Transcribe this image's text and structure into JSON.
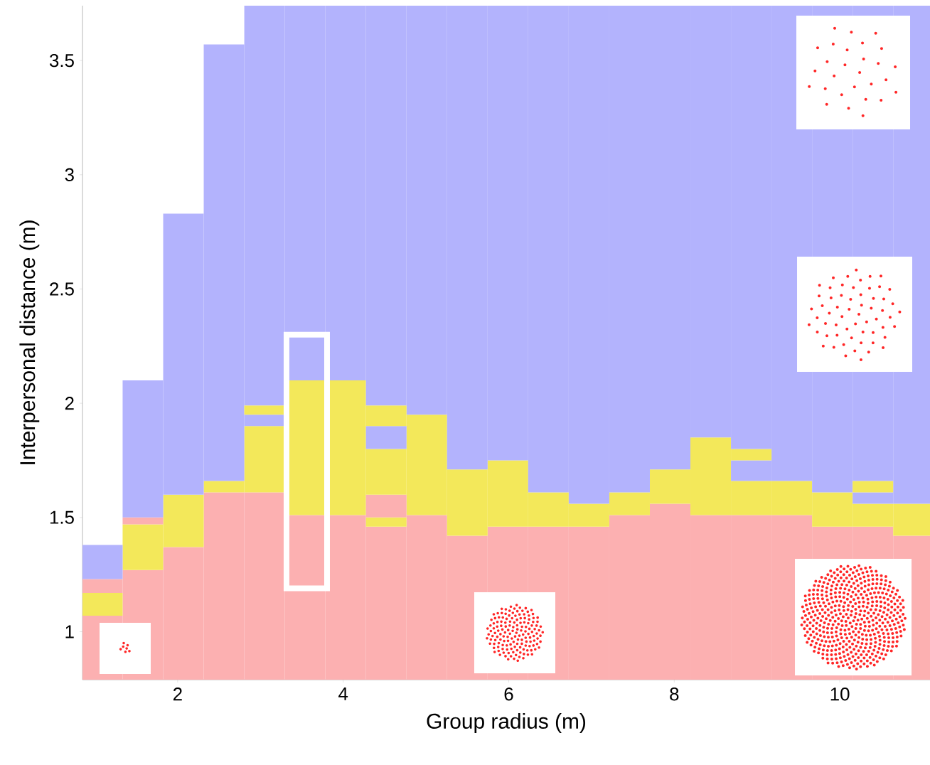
{
  "chart_data": {
    "type": "bar",
    "xlabel": "Group radius (m)",
    "ylabel": "Interpersonal distance (m)",
    "x": [
      1.09,
      1.58,
      2.07,
      2.56,
      3.05,
      3.54,
      4.03,
      4.52,
      5.01,
      5.5,
      5.99,
      6.48,
      6.97,
      7.46,
      7.95,
      8.44,
      8.93,
      9.42,
      9.91,
      10.4,
      10.89
    ],
    "xlim": [
      0.85,
      11.09
    ],
    "ylim": [
      0.79,
      3.74
    ],
    "xticks": [
      2,
      4,
      6,
      8,
      10
    ],
    "yticks": [
      1,
      1.5,
      2,
      2.5,
      3,
      3.5
    ],
    "grid": false,
    "series": [
      {
        "color": "#fcb0b1",
        "values": [
          0.28,
          0.48,
          0.58,
          0.82,
          0.82,
          0.72,
          0.72,
          0.67,
          0.72,
          0.63,
          0.67,
          0.67,
          0.67,
          0.72,
          0.77,
          0.72,
          0.72,
          0.72,
          0.67,
          0.67,
          0.63
        ],
        "base": [
          0.79,
          0.79,
          0.79,
          0.79,
          0.79,
          0.79,
          0.79,
          0.79,
          0.79,
          0.79,
          0.79,
          0.79,
          0.79,
          0.79,
          0.79,
          0.79,
          0.79,
          0.79,
          0.79,
          0.79,
          0.79
        ]
      },
      {
        "color": "#f3e85a",
        "values": [
          0.1,
          0.2,
          0.23,
          0.05,
          0.29,
          0.59,
          0.59,
          0.04,
          0.44,
          0.29,
          0.29,
          0.15,
          0.1,
          0.1,
          0.15,
          0.34,
          0.15,
          0.15,
          0.15,
          0.1,
          0.14
        ],
        "base": [
          1.07,
          1.27,
          1.37,
          1.61,
          1.61,
          1.51,
          1.51,
          1.46,
          1.51,
          1.42,
          1.46,
          1.46,
          1.46,
          1.51,
          1.56,
          1.51,
          1.51,
          1.51,
          1.46,
          1.46,
          1.42
        ]
      },
      {
        "color": "#fcb0b1",
        "values": [
          0.06,
          0.03,
          null,
          null,
          null,
          null,
          null,
          0.1,
          null,
          null,
          null,
          null,
          null,
          null,
          null,
          null,
          null,
          null,
          null,
          null,
          null
        ],
        "base": [
          1.17,
          1.47,
          null,
          null,
          null,
          null,
          null,
          1.5,
          null,
          null,
          null,
          null,
          null,
          null,
          null,
          null,
          null,
          null,
          null,
          null,
          null
        ]
      },
      {
        "color": "#f3e85a",
        "values": [
          null,
          null,
          null,
          null,
          null,
          null,
          null,
          0.2,
          null,
          null,
          null,
          null,
          null,
          null,
          null,
          null,
          null,
          null,
          null,
          null,
          null
        ],
        "base": [
          null,
          null,
          null,
          null,
          null,
          null,
          null,
          1.6,
          null,
          null,
          null,
          null,
          null,
          null,
          null,
          null,
          null,
          null,
          null,
          null,
          null
        ]
      },
      {
        "color": "#b3b3fd",
        "values": [
          0.15,
          0.6,
          1.23,
          1.91,
          0.05,
          1.64,
          1.64,
          0.1,
          1.79,
          2.03,
          1.99,
          2.13,
          2.18,
          2.13,
          2.03,
          1.89,
          0.09,
          2.08,
          2.13,
          0.05,
          2.18
        ],
        "base": [
          1.23,
          1.5,
          1.6,
          1.66,
          1.9,
          2.1,
          2.1,
          1.8,
          1.95,
          1.71,
          1.75,
          1.61,
          1.56,
          1.61,
          1.71,
          1.85,
          1.66,
          1.66,
          1.61,
          1.56,
          1.56
        ]
      },
      {
        "color": "#f3e85a",
        "values": [
          null,
          null,
          null,
          null,
          0.04,
          null,
          null,
          0.09,
          null,
          null,
          null,
          null,
          null,
          null,
          null,
          null,
          0.05,
          null,
          null,
          0.05,
          null
        ],
        "base": [
          null,
          null,
          null,
          null,
          1.95,
          null,
          null,
          1.9,
          null,
          null,
          null,
          null,
          null,
          null,
          null,
          null,
          1.75,
          null,
          null,
          1.61,
          null
        ]
      },
      {
        "color": "#b3b3fd",
        "values": [
          null,
          null,
          null,
          null,
          1.75,
          null,
          null,
          1.75,
          null,
          null,
          null,
          null,
          null,
          null,
          null,
          null,
          1.94,
          null,
          null,
          2.08,
          null
        ],
        "base": [
          null,
          null,
          null,
          null,
          1.99,
          null,
          null,
          1.99,
          null,
          null,
          null,
          null,
          null,
          null,
          null,
          null,
          1.8,
          null,
          null,
          1.66,
          null
        ]
      }
    ]
  }
}
